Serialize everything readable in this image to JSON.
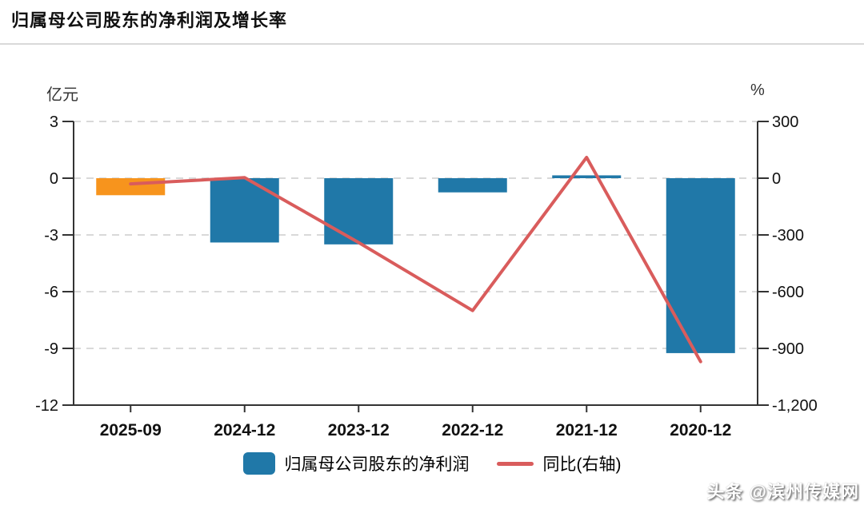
{
  "header": {
    "title": "归属母公司股东的净利润及增长率"
  },
  "chart_data": {
    "type": "bar+line combo",
    "categories": [
      "2025-09",
      "2024-12",
      "2023-12",
      "2022-12",
      "2021-12",
      "2020-12"
    ],
    "series": [
      {
        "name": "归属母公司股东的净利润",
        "type": "bar",
        "axis": "left",
        "unit": "亿元",
        "values": [
          -0.9,
          -3.4,
          -3.5,
          -0.75,
          0.15,
          -9.25
        ],
        "bar_colors": [
          "#F7941D",
          "#2078A8",
          "#2078A8",
          "#2078A8",
          "#2078A8",
          "#2078A8"
        ]
      },
      {
        "name": "同比(右轴)",
        "type": "line",
        "axis": "right",
        "unit": "%",
        "values": [
          -30,
          3,
          -340,
          -700,
          110,
          -970
        ],
        "color": "#D95C5C"
      }
    ],
    "left_axis": {
      "label": "亿元",
      "min": -12,
      "max": 3,
      "ticks": [
        3,
        0,
        -3,
        -6,
        -9,
        -12
      ],
      "tick_labels": [
        "3",
        "0",
        "-3",
        "-6",
        "-9",
        "-12"
      ]
    },
    "right_axis": {
      "label": "%",
      "min": -1200,
      "max": 300,
      "ticks": [
        300,
        0,
        -300,
        -600,
        -900,
        -1200
      ],
      "tick_labels": [
        "300",
        "0",
        "-300",
        "-600",
        "-900",
        "-1,200"
      ]
    },
    "grid": "horizontal dashed",
    "legend_position": "bottom center"
  },
  "legend": {
    "bar_label": "归属母公司股东的净利润",
    "line_label": "同比(右轴)"
  },
  "colors": {
    "bar_blue": "#2078A8",
    "bar_orange": "#F7941D",
    "line_red": "#D95C5C",
    "grid_gray": "#d9d9d9",
    "axis_black": "#333333",
    "text_black": "#111111"
  },
  "watermark": {
    "text": "头条 @滨州传媒网"
  }
}
